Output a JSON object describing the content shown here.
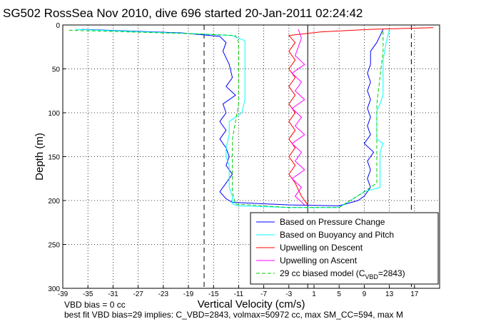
{
  "chart_data": {
    "type": "line",
    "title": "SG502 RossSea Nov 2010, dive 696 started 20-Jan-2011 02:24:42",
    "xlabel": "Vertical Velocity (cm/s)",
    "ylabel": "Depth (m)",
    "xlim": [
      -39,
      21
    ],
    "ylim": [
      300,
      0
    ],
    "y_reversed": true,
    "grid": true,
    "x_ticks": [
      -39,
      -35,
      -31,
      -27,
      -23,
      -19,
      -15,
      -11,
      -7,
      -3,
      1,
      5,
      9,
      13,
      17
    ],
    "y_ticks": [
      0,
      50,
      100,
      150,
      200,
      250,
      300
    ],
    "vertical_lines": [
      {
        "x": -16.5,
        "style": "dashed"
      },
      {
        "x": 0,
        "style": "solid"
      },
      {
        "x": 16.5,
        "style": "dashed"
      }
    ],
    "legend_location": "bottom-right",
    "series": [
      {
        "name": "Based on Pressure Change",
        "color": "#0000ff",
        "dash": "solid",
        "x": [
          -36,
          -20,
          -14,
          -13,
          -13.5,
          -12.5,
          -12,
          -13,
          -11.5,
          -13.5,
          -13,
          -14,
          -13,
          -14,
          -13,
          -12.5,
          -13,
          -12,
          -13,
          -14,
          -13,
          -12,
          -3,
          5,
          8,
          9,
          10,
          9.5,
          10,
          9.5,
          10.5,
          9,
          10,
          9.5,
          10,
          9.5,
          10,
          9.5,
          10,
          9.5,
          10,
          10,
          11,
          12
        ],
        "y": [
          5,
          9,
          13,
          20,
          30,
          45,
          60,
          70,
          80,
          90,
          100,
          110,
          120,
          130,
          140,
          150,
          160,
          170,
          180,
          190,
          198,
          202,
          205,
          206,
          200,
          195,
          185,
          175,
          165,
          155,
          145,
          135,
          125,
          115,
          105,
          95,
          85,
          75,
          65,
          55,
          45,
          30,
          20,
          5
        ]
      },
      {
        "name": "Based on Buoyancy and Pitch",
        "color": "#00ffff",
        "dash": "solid",
        "x": [
          -37,
          -18,
          -12,
          -10,
          -10,
          -10,
          -10.5,
          -11.5,
          -12.5,
          -12.5,
          -13,
          -13,
          -12.5,
          -12.5,
          -12.5,
          -12,
          -12,
          -12,
          -11.5,
          -11,
          -3,
          5,
          9,
          11.5,
          11.5,
          11.5,
          11.5,
          12,
          11,
          11,
          11,
          11,
          11.5,
          12,
          12,
          12,
          12.5,
          13
        ],
        "y": [
          5,
          10,
          12,
          18,
          40,
          85,
          100,
          105,
          110,
          125,
          140,
          150,
          160,
          175,
          185,
          195,
          200,
          204,
          205,
          206,
          208,
          208,
          190,
          185,
          170,
          160,
          145,
          135,
          130,
          118,
          108,
          98,
          90,
          80,
          60,
          40,
          20,
          5
        ]
      },
      {
        "name": "Upwelling on Descent",
        "color": "#ff0000",
        "dash": "solid",
        "x": [
          20,
          10,
          2,
          -3,
          -2,
          -3,
          -2,
          -3,
          -2,
          -3,
          -2,
          -3,
          -2,
          -3,
          -2,
          -3,
          -2,
          -3,
          -2,
          -3,
          -2,
          -1,
          0
        ],
        "y": [
          3,
          5,
          8,
          12,
          20,
          30,
          40,
          50,
          60,
          70,
          80,
          90,
          100,
          110,
          120,
          130,
          140,
          150,
          160,
          170,
          180,
          195,
          205
        ]
      },
      {
        "name": "Upwelling on Ascent",
        "color": "#ff00ff",
        "dash": "solid",
        "x": [
          -0.5,
          -2,
          -1,
          -2.5,
          -0.5,
          -2,
          -1,
          -2.5,
          -0.5,
          -2,
          -1,
          -2.5,
          -0.5,
          -2,
          -1,
          -2.5,
          -0.5,
          -2,
          -1,
          -1.5
        ],
        "y": [
          205,
          195,
          185,
          175,
          165,
          155,
          145,
          135,
          125,
          115,
          105,
          95,
          85,
          75,
          65,
          55,
          45,
          35,
          15,
          5
        ]
      },
      {
        "name": "29 cc biased model (C_VBD=2843)",
        "color": "#00cc00",
        "dash": "dashed",
        "x": [
          -38,
          -18,
          -11.5,
          -11,
          -11,
          -11,
          -11.5,
          -12,
          -12,
          -12,
          -12,
          -11.5,
          -3,
          5,
          9,
          11,
          11,
          11,
          11,
          11.5,
          12,
          12
        ],
        "y": [
          6,
          10,
          12,
          20,
          50,
          90,
          110,
          130,
          150,
          170,
          190,
          204,
          208,
          208,
          190,
          180,
          150,
          120,
          90,
          60,
          30,
          6
        ]
      }
    ]
  },
  "legend": {
    "items": [
      {
        "text": "Based on Pressure Change",
        "color": "#0000ff",
        "dash": "solid"
      },
      {
        "text": "Based on Buoyancy and Pitch",
        "color": "#00ffff",
        "dash": "solid"
      },
      {
        "text": "Upwelling on Descent",
        "color": "#ff0000",
        "dash": "solid"
      },
      {
        "text": "Upwelling on Ascent",
        "color": "#ff00ff",
        "dash": "solid"
      },
      {
        "text": "29 cc biased model (C",
        "sub": "VBD",
        "suffix": "=2843)",
        "color": "#00cc00",
        "dash": "dashed"
      }
    ]
  },
  "notes": {
    "line1": "VBD bias = 0 cc",
    "line2": "best fit VBD bias=29 implies: C_VBD=2843, volmax=50972 cc, max SM_CC=594, max M"
  }
}
